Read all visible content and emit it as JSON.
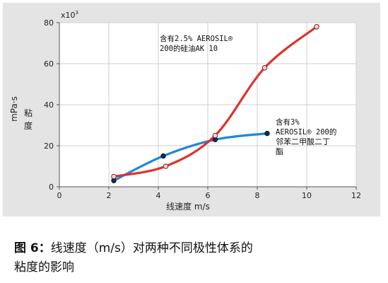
{
  "chart_data": {
    "type": "line",
    "multiplier_label": "x10",
    "multiplier_exp": "3",
    "ylabel_unit": "mPa·s",
    "ylabel_text": "粘度",
    "xlabel": "线速度 m/s",
    "xlim": [
      0,
      12
    ],
    "ylim": [
      0,
      80
    ],
    "x_ticks": [
      0,
      2,
      4,
      6,
      8,
      10,
      12
    ],
    "y_ticks": [
      0,
      20,
      40,
      60,
      80
    ],
    "grid": true,
    "series": [
      {
        "color": "#1e88d8",
        "x": [
          2.2,
          4.2,
          6.3,
          8.4
        ],
        "y": [
          3,
          15,
          23,
          26
        ]
      },
      {
        "color": "#e0312e",
        "x": [
          2.2,
          4.3,
          6.3,
          8.3,
          10.4
        ],
        "y": [
          5,
          10,
          25,
          58,
          78
        ]
      }
    ],
    "annotations": [
      {
        "lines": [
          "含有2.5% AEROSIL®",
          "200的硅油AK 10"
        ]
      },
      {
        "lines": [
          "含有3%",
          "AEROSIL® 200的",
          "邻苯二甲酸二丁",
          "酯"
        ]
      }
    ]
  },
  "caption": {
    "label": "图 6：",
    "line1": "线速度（m/s）对两种不同极性体系的",
    "line2": "粘度的影响"
  }
}
